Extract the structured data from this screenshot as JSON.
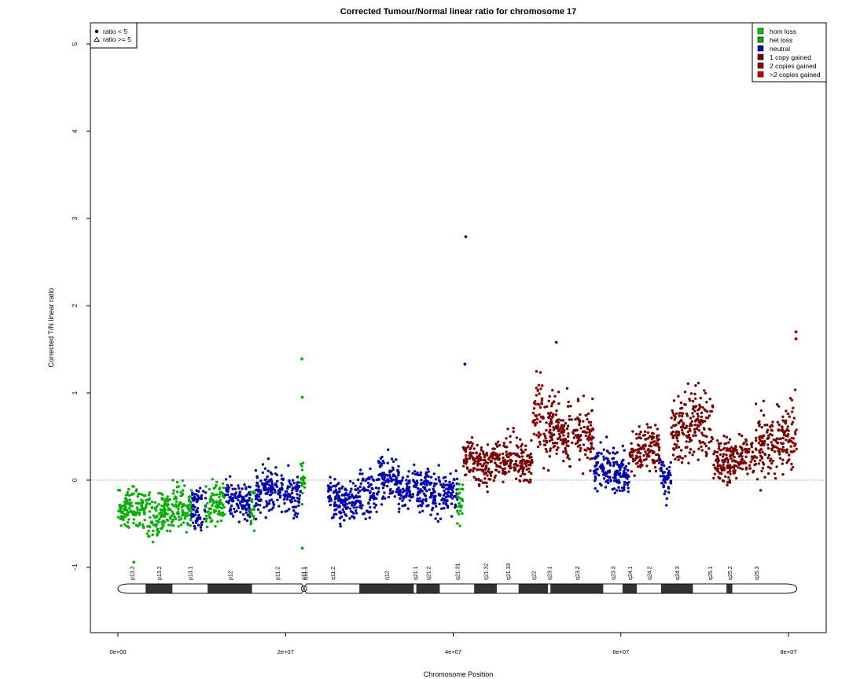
{
  "chart_data": {
    "type": "scatter",
    "title": "Corrected Tumour/Normal linear ratio for chromosome  17",
    "xlabel": "Chromosome Position",
    "ylabel": "Corrected T/N linear ratio",
    "xlim": [
      0,
      81000000
    ],
    "ylim": [
      -1.8,
      5.2
    ],
    "x_ticks": [
      0,
      20000000,
      40000000,
      60000000,
      80000000
    ],
    "x_tick_labels": [
      "0e+00",
      "2e+07",
      "4e+07",
      "6e+07",
      "8e+07"
    ],
    "y_ticks": [
      -1,
      0,
      1,
      2,
      3,
      4,
      5
    ],
    "y_tick_labels": [
      "−1",
      "0",
      "1",
      "2",
      "3",
      "4",
      "5"
    ],
    "reference_line": 0,
    "shape_legend": {
      "position": "top-left",
      "entries": [
        {
          "label": "ratio < 5",
          "symbol": "dot"
        },
        {
          "label": "ratio >= 5",
          "symbol": "triangle"
        }
      ]
    },
    "legend": {
      "position": "top-right",
      "entries": [
        {
          "label": "hom loss",
          "color": "#00cc00"
        },
        {
          "label": "het loss",
          "color": "#00b000"
        },
        {
          "label": "neutral",
          "color": "#0000b4"
        },
        {
          "label": "1 copy gained",
          "color": "#7a0000"
        },
        {
          "label": "2 copies gained",
          "color": "#990000"
        },
        {
          "label": ">2 copies gained",
          "color": "#cc0000"
        }
      ]
    },
    "segments": [
      {
        "start": 0,
        "end": 6500000,
        "mean": -0.36,
        "state": "het loss"
      },
      {
        "start": 6500000,
        "end": 8800000,
        "mean": -0.33,
        "state": "het loss"
      },
      {
        "start": 8800000,
        "end": 10500000,
        "mean": -0.3,
        "state": "neutral"
      },
      {
        "start": 10500000,
        "end": 12800000,
        "mean": -0.26,
        "state": "het loss"
      },
      {
        "start": 12800000,
        "end": 15800000,
        "mean": -0.22,
        "state": "neutral"
      },
      {
        "start": 15800000,
        "end": 16400000,
        "mean": -0.3,
        "state": "het loss"
      },
      {
        "start": 16400000,
        "end": 21800000,
        "mean": -0.14,
        "state": "neutral"
      },
      {
        "start": 21800000,
        "end": 22400000,
        "mean": 0.05,
        "state": "het loss"
      },
      {
        "start": 25000000,
        "end": 31000000,
        "mean": -0.2,
        "state": "neutral"
      },
      {
        "start": 31000000,
        "end": 33500000,
        "mean": 0.05,
        "state": "neutral"
      },
      {
        "start": 33500000,
        "end": 40500000,
        "mean": -0.13,
        "state": "neutral"
      },
      {
        "start": 40500000,
        "end": 41200000,
        "mean": -0.3,
        "state": "het loss"
      },
      {
        "start": 41200000,
        "end": 49500000,
        "mean": 0.22,
        "state": "1 copy gained"
      },
      {
        "start": 49500000,
        "end": 50800000,
        "mean": 0.85,
        "state": "2 copies gained"
      },
      {
        "start": 50800000,
        "end": 56800000,
        "mean": 0.55,
        "state": "1 copy gained"
      },
      {
        "start": 56800000,
        "end": 61000000,
        "mean": 0.1,
        "state": "neutral"
      },
      {
        "start": 61000000,
        "end": 64600000,
        "mean": 0.35,
        "state": "1 copy gained"
      },
      {
        "start": 64600000,
        "end": 66000000,
        "mean": 0.05,
        "state": "neutral"
      },
      {
        "start": 66000000,
        "end": 71000000,
        "mean": 0.62,
        "state": "1 copy gained"
      },
      {
        "start": 71000000,
        "end": 76000000,
        "mean": 0.25,
        "state": "1 copy gained"
      },
      {
        "start": 76000000,
        "end": 80300000,
        "mean": 0.45,
        "state": "1 copy gained"
      },
      {
        "start": 80300000,
        "end": 81000000,
        "mean": 0.55,
        "state": "2 copies gained"
      }
    ],
    "outliers": [
      {
        "x": 21950000,
        "y": 1.39,
        "state": "het loss"
      },
      {
        "x": 22000000,
        "y": 0.95,
        "state": "het loss"
      },
      {
        "x": 22000000,
        "y": -0.78,
        "state": "het loss"
      },
      {
        "x": 1900000,
        "y": -0.94,
        "state": "het loss"
      },
      {
        "x": 41500000,
        "y": 2.79,
        "state": "1 copy gained"
      },
      {
        "x": 52300000,
        "y": 1.58,
        "state": "1 copy gained"
      },
      {
        "x": 80900000,
        "y": 1.7,
        "state": "2 copies gained"
      },
      {
        "x": 80900000,
        "y": 1.62,
        "state": "2 copies gained"
      },
      {
        "x": 41400000,
        "y": 1.33,
        "state": "neutral"
      }
    ],
    "ideogram": {
      "centromere": 22200000,
      "bands": [
        {
          "name": "p13.3",
          "start": 0,
          "end": 3300000,
          "stain": "gneg"
        },
        {
          "name": "p13.2",
          "start": 3300000,
          "end": 6500000,
          "stain": "gpos"
        },
        {
          "name": "p13.1",
          "start": 6500000,
          "end": 10700000,
          "stain": "gneg"
        },
        {
          "name": "p12",
          "start": 10700000,
          "end": 16000000,
          "stain": "gpos"
        },
        {
          "name": "p11.2",
          "start": 16000000,
          "end": 22000000,
          "stain": "gneg"
        },
        {
          "name": "p11.1",
          "start": 22000000,
          "end": 22200000,
          "stain": "acen"
        },
        {
          "name": "q11.1",
          "start": 22200000,
          "end": 22400000,
          "stain": "acen"
        },
        {
          "name": "q11.2",
          "start": 22400000,
          "end": 28800000,
          "stain": "gneg"
        },
        {
          "name": "q12",
          "start": 28800000,
          "end": 35300000,
          "stain": "gpos"
        },
        {
          "name": "q21.1",
          "start": 35300000,
          "end": 35600000,
          "stain": "gneg"
        },
        {
          "name": "q21.2",
          "start": 35600000,
          "end": 38400000,
          "stain": "gpos"
        },
        {
          "name": "q21.31",
          "start": 38400000,
          "end": 42500000,
          "stain": "gneg"
        },
        {
          "name": "q21.32",
          "start": 42500000,
          "end": 45200000,
          "stain": "gpos"
        },
        {
          "name": "q21.33",
          "start": 45200000,
          "end": 47800000,
          "stain": "gneg"
        },
        {
          "name": "q22",
          "start": 47800000,
          "end": 51300000,
          "stain": "gpos"
        },
        {
          "name": "q23.1",
          "start": 51300000,
          "end": 51600000,
          "stain": "gneg"
        },
        {
          "name": "q23.2",
          "start": 51600000,
          "end": 57900000,
          "stain": "gpos"
        },
        {
          "name": "q23.3",
          "start": 57900000,
          "end": 60200000,
          "stain": "gneg"
        },
        {
          "name": "q24.1",
          "start": 60200000,
          "end": 61900000,
          "stain": "gpos"
        },
        {
          "name": "q24.2",
          "start": 61900000,
          "end": 64800000,
          "stain": "gneg"
        },
        {
          "name": "q24.3",
          "start": 64800000,
          "end": 68600000,
          "stain": "gpos"
        },
        {
          "name": "q25.1",
          "start": 68600000,
          "end": 72600000,
          "stain": "gneg"
        },
        {
          "name": "q25.2",
          "start": 72600000,
          "end": 73300000,
          "stain": "gpos"
        },
        {
          "name": "q25.3",
          "start": 73300000,
          "end": 79000000,
          "stain": "gneg"
        }
      ]
    }
  }
}
